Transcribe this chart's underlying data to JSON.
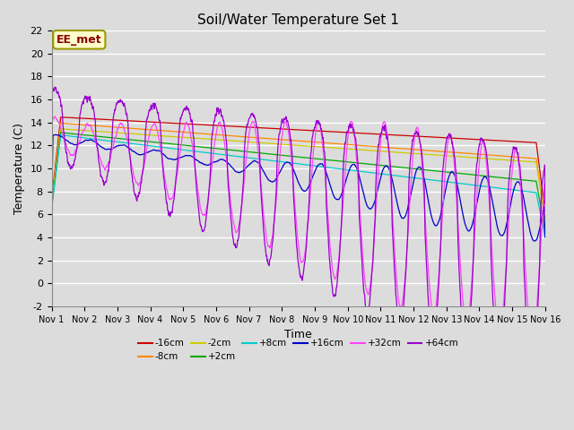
{
  "title": "Soil/Water Temperature Set 1",
  "xlabel": "Time",
  "ylabel": "Temperature (C)",
  "ylim": [
    -2,
    22
  ],
  "xlim": [
    0,
    15
  ],
  "background_color": "#dcdcdc",
  "plot_bg_color": "#dcdcdc",
  "grid_color": "#ffffff",
  "annotation_text": "EE_met",
  "annotation_bg": "#ffffcc",
  "annotation_border": "#999900",
  "series": [
    {
      "label": "-16cm",
      "color": "#cc0000"
    },
    {
      "label": "-8cm",
      "color": "#ff8800"
    },
    {
      "label": "-2cm",
      "color": "#cccc00"
    },
    {
      "label": "+2cm",
      "color": "#00aa00"
    },
    {
      "label": "+8cm",
      "color": "#00cccc"
    },
    {
      "label": "+16cm",
      "color": "#0000cc"
    },
    {
      "label": "+32cm",
      "color": "#ff44ff"
    },
    {
      "label": "+64cm",
      "color": "#9900cc"
    }
  ],
  "xtick_labels": [
    "Nov 1",
    "Nov 2",
    "Nov 3",
    "Nov 4",
    "Nov 5",
    "Nov 6",
    "Nov 7",
    "Nov 8",
    "Nov 9",
    "Nov 10",
    "Nov 11",
    "Nov 12",
    "Nov 13",
    "Nov 14",
    "Nov 15",
    "Nov 16"
  ],
  "ytick_values": [
    -2,
    0,
    2,
    4,
    6,
    8,
    10,
    12,
    14,
    16,
    18,
    20,
    22
  ]
}
